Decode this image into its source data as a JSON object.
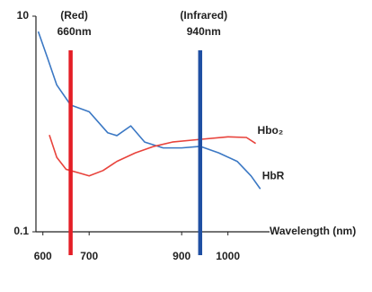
{
  "chart_data": {
    "type": "line",
    "xlabel": "Wavelength (nm)",
    "xlim": [
      585,
      1090
    ],
    "xticks": [
      600,
      700,
      900,
      1000
    ],
    "ylim": [
      0.1,
      10
    ],
    "yticks": [
      0.1,
      10
    ],
    "log_y": true,
    "series": [
      {
        "name": "HbR",
        "color": "#3b78c4",
        "x": [
          590,
          610,
          630,
          660,
          700,
          740,
          760,
          790,
          820,
          860,
          900,
          940,
          980,
          1020,
          1050,
          1070
        ],
        "values": [
          7.2,
          4.1,
          2.3,
          1.5,
          1.3,
          0.83,
          0.78,
          0.96,
          0.68,
          0.6,
          0.6,
          0.62,
          0.54,
          0.45,
          0.33,
          0.25
        ]
      },
      {
        "name": "Hbo₂",
        "color": "#e8433c",
        "x": [
          614,
          630,
          650,
          680,
          700,
          730,
          760,
          800,
          840,
          880,
          940,
          1000,
          1040,
          1060
        ],
        "values": [
          0.79,
          0.49,
          0.38,
          0.35,
          0.33,
          0.37,
          0.45,
          0.54,
          0.62,
          0.68,
          0.72,
          0.76,
          0.75,
          0.66
        ]
      }
    ],
    "markers": [
      {
        "x": 660,
        "color": "#e41e26",
        "label_lines": [
          "(Red)",
          "660nm"
        ]
      },
      {
        "x": 940,
        "color": "#1f4fa3",
        "label_lines": [
          "(Infrared)",
          "940nm"
        ]
      }
    ]
  }
}
